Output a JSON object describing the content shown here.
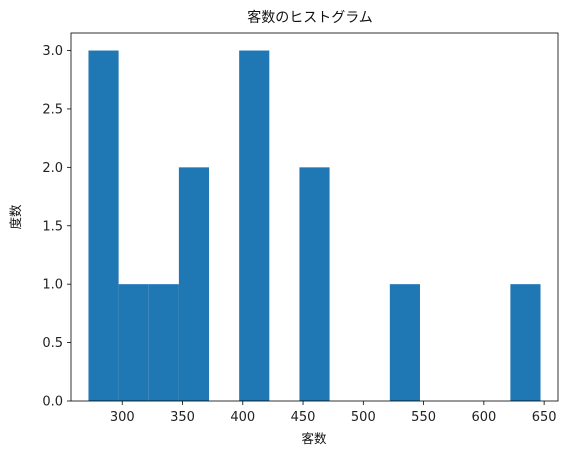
{
  "chart_data": {
    "type": "bar",
    "title": "客数のヒストグラム",
    "xlabel": "客数",
    "ylabel": "度数",
    "bin_edges": [
      272,
      297,
      322,
      347,
      372,
      397,
      422,
      447,
      472,
      497,
      522,
      547,
      572,
      597,
      622,
      647
    ],
    "values": [
      3,
      1,
      1,
      2,
      0,
      3,
      0,
      2,
      0,
      0,
      1,
      0,
      0,
      0,
      1
    ],
    "xlim": [
      257.5,
      661.5
    ],
    "ylim": [
      0,
      3.15
    ],
    "xticks": [
      300,
      350,
      400,
      450,
      500,
      550,
      600,
      650
    ],
    "yticks": [
      0.0,
      0.5,
      1.0,
      1.5,
      2.0,
      2.5,
      3.0
    ],
    "ytick_labels": [
      "0.0",
      "0.5",
      "1.0",
      "1.5",
      "2.0",
      "2.5",
      "3.0"
    ],
    "bar_color": "#1f77b4",
    "grid": false
  }
}
